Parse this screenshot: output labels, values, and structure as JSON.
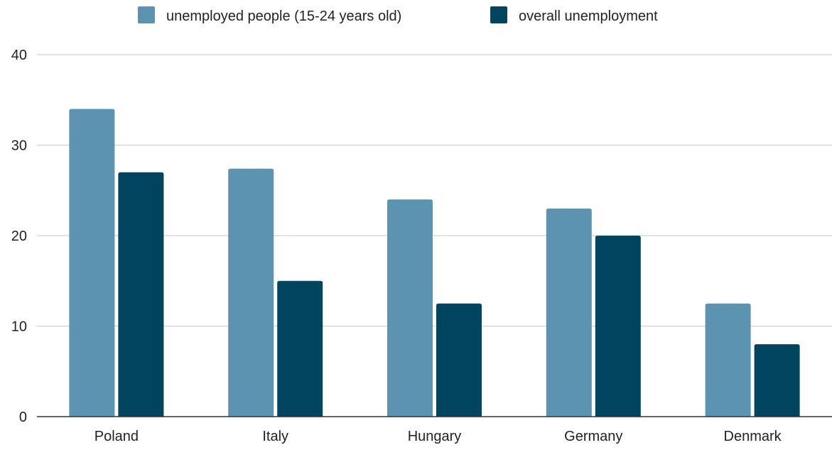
{
  "chart_data": {
    "type": "bar",
    "title": "",
    "xlabel": "",
    "ylabel": "",
    "categories": [
      "Poland",
      "Italy",
      "Hungary",
      "Germany",
      "Denmark"
    ],
    "series": [
      {
        "name": "unemployed people (15-24 years old)",
        "color": "#5b93b1",
        "values": [
          34,
          27.4,
          24,
          23,
          12.5
        ]
      },
      {
        "name": "overall unemployment",
        "color": "#00445f",
        "values": [
          27,
          15,
          12.5,
          20,
          8
        ]
      }
    ],
    "ylim": [
      0,
      40
    ],
    "yticks": [
      0,
      10,
      20,
      30,
      40
    ],
    "grid": true,
    "legend_position": "top"
  }
}
